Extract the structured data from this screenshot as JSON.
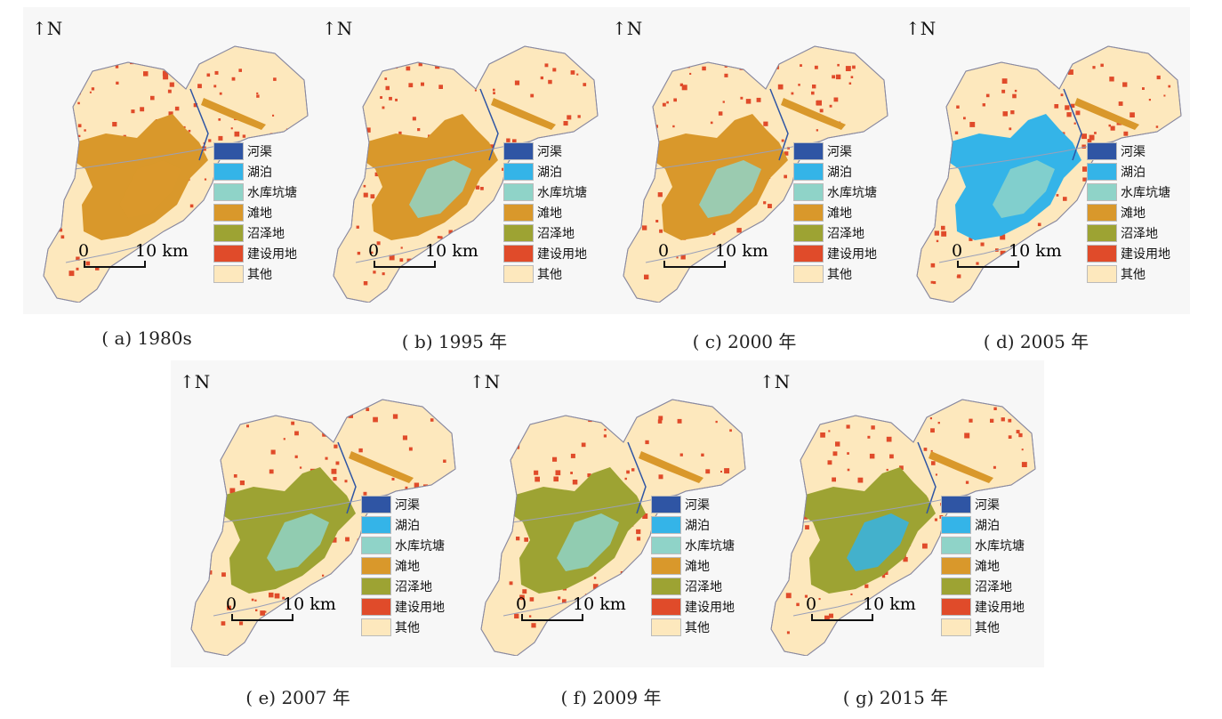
{
  "north_label": "N",
  "scale": {
    "zero": "0",
    "ten": "10 km"
  },
  "legend": [
    {
      "label": "河渠",
      "color": "#2f55a4"
    },
    {
      "label": "湖泊",
      "color": "#34b4e8"
    },
    {
      "label": "水库坑塘",
      "color": "#8fd3c8"
    },
    {
      "label": "滩地",
      "color": "#d9982b"
    },
    {
      "label": "沼泽地",
      "color": "#9da333"
    },
    {
      "label": "建设用地",
      "color": "#e04b2a"
    },
    {
      "label": "其他",
      "color": "#fde8bd"
    }
  ],
  "panels": [
    {
      "caption": "( a) 1980s",
      "dominant": "滩地",
      "dominant_color": "#d9982b",
      "secondary_color": "#d9982b"
    },
    {
      "caption": "( b) 1995 年",
      "dominant": "滩地",
      "dominant_color": "#d9982b",
      "secondary_color": "#8fd3c8"
    },
    {
      "caption": "( c) 2000 年",
      "dominant": "滩地",
      "dominant_color": "#d9982b",
      "secondary_color": "#8fd3c8"
    },
    {
      "caption": "( d) 2005 年",
      "dominant": "湖泊",
      "dominant_color": "#34b4e8",
      "secondary_color": "#8fd3c8"
    },
    {
      "caption": "( e) 2007 年",
      "dominant": "沼泽地",
      "dominant_color": "#9da333",
      "secondary_color": "#8fd3c8"
    },
    {
      "caption": "( f) 2009 年",
      "dominant": "沼泽地",
      "dominant_color": "#9da333",
      "secondary_color": "#8fd3c8"
    },
    {
      "caption": "( g) 2015 年",
      "dominant": "沼泽地",
      "dominant_color": "#9da333",
      "secondary_color": "#34b4e8"
    }
  ]
}
